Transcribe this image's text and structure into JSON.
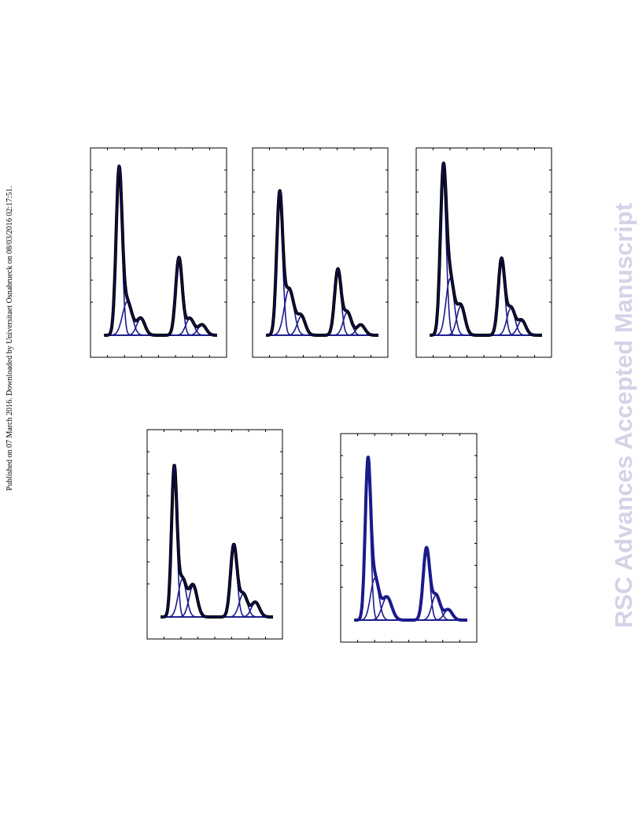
{
  "side_note": "Published on 07 March 2016. Downloaded by Universitaet Osnabrueck on 08/03/2016 02:17:51.",
  "watermark": "RSC Advances Accepted Manuscript"
}
